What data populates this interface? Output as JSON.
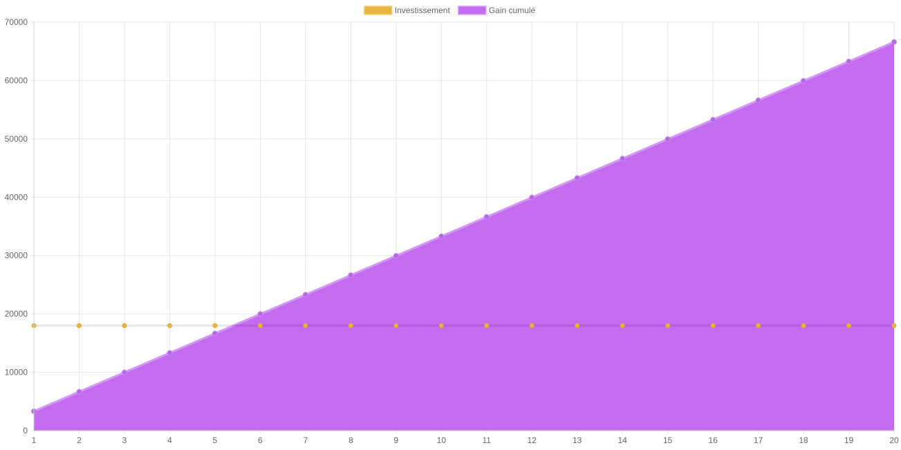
{
  "chart_data": {
    "type": "area",
    "title": "",
    "xlabel": "",
    "ylabel": "",
    "x": [
      1,
      2,
      3,
      4,
      5,
      6,
      7,
      8,
      9,
      10,
      11,
      12,
      13,
      14,
      15,
      16,
      17,
      18,
      19,
      20
    ],
    "ylim": [
      0,
      70000
    ],
    "yticks": [
      0,
      10000,
      20000,
      30000,
      40000,
      50000,
      60000,
      70000
    ],
    "grid": true,
    "legend_position": "top",
    "series": [
      {
        "name": "Investissement",
        "type": "line",
        "color": "#e8b540",
        "fill": false,
        "values": [
          18000,
          18000,
          18000,
          18000,
          18000,
          18000,
          18000,
          18000,
          18000,
          18000,
          18000,
          18000,
          18000,
          18000,
          18000,
          18000,
          18000,
          18000,
          18000,
          18000
        ]
      },
      {
        "name": "Gain cumulé",
        "type": "area",
        "color": "#c36cf0",
        "fill": true,
        "values": [
          3330,
          6660,
          9990,
          13320,
          16650,
          19980,
          23310,
          26640,
          29970,
          33300,
          36630,
          39960,
          43290,
          46620,
          49950,
          53280,
          56610,
          59940,
          63270,
          66600
        ]
      }
    ]
  }
}
